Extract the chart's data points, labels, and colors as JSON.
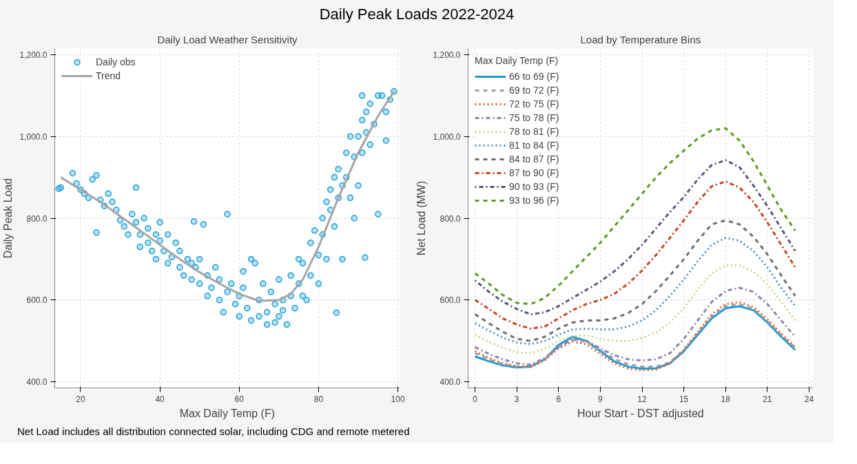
{
  "chart_data": [
    {
      "type": "scatter",
      "title": "Daily Load Weather Sensitivity",
      "xlabel": "Max Daily Temp (F)",
      "ylabel": "Daily Peak Load",
      "annotations": [
        "Daily Peak Loads 2022-2024"
      ],
      "xlim": [
        13.5,
        100.5
      ],
      "xticks": [
        20,
        40,
        60,
        80,
        100
      ],
      "ylim": [
        385,
        1215
      ],
      "yticks": [
        {
          "value": 400,
          "label": "400.0"
        },
        {
          "value": 600,
          "label": "600.0"
        },
        {
          "value": 800,
          "label": "800.0"
        },
        {
          "value": 1000,
          "label": "1,000.0"
        },
        {
          "value": 1200,
          "label": "1,200.0"
        }
      ],
      "grid": true,
      "legend": "top left",
      "series": [
        {
          "name": "Daily obs",
          "type": "scatter",
          "marker": "circle",
          "color": "#1a9fd9",
          "x": [
            14.5,
            15,
            18,
            19,
            20,
            21,
            22,
            23,
            24,
            24,
            25,
            26,
            27,
            28,
            29,
            30,
            31,
            32,
            33,
            34,
            34,
            35,
            35,
            36,
            37,
            37,
            38,
            39,
            39,
            40,
            40,
            41,
            42,
            42,
            43,
            44,
            45,
            45,
            46,
            47,
            48,
            48,
            48.6,
            49,
            50,
            50,
            51,
            52,
            52,
            53,
            54,
            55,
            55,
            56,
            57,
            57,
            58,
            59,
            60,
            60,
            61,
            61,
            62,
            63,
            63,
            64,
            65,
            65,
            66,
            67,
            67,
            68,
            69,
            69,
            70,
            70,
            71,
            71,
            72,
            73,
            73,
            74,
            75,
            75,
            76,
            76,
            77,
            78,
            78,
            79,
            80,
            80,
            81,
            81,
            82,
            82,
            83,
            83,
            84,
            84,
            84.5,
            85,
            85,
            86,
            86,
            87,
            87,
            88,
            88,
            89,
            89,
            90,
            90,
            91,
            91,
            91,
            91.7,
            92,
            92,
            93,
            93,
            94,
            95,
            95,
            96,
            97,
            97,
            98,
            99
          ],
          "values": [
            872,
            875,
            910,
            885,
            870,
            860,
            850,
            895,
            905,
            765,
            845,
            830,
            860,
            840,
            820,
            795,
            780,
            760,
            810,
            875,
            790,
            760,
            730,
            800,
            775,
            740,
            720,
            760,
            700,
            790,
            745,
            720,
            690,
            760,
            705,
            740,
            680,
            720,
            660,
            700,
            690,
            650,
            792,
            680,
            640,
            700,
            785,
            660,
            610,
            630,
            680,
            600,
            650,
            570,
            810,
            620,
            640,
            590,
            610,
            560,
            670,
            630,
            580,
            550,
            700,
            690,
            600,
            560,
            640,
            570,
            540,
            620,
            590,
            545,
            650,
            560,
            600,
            575,
            540,
            660,
            610,
            580,
            700,
            640,
            690,
            610,
            600,
            740,
            660,
            770,
            710,
            640,
            800,
            760,
            840,
            700,
            820,
            870,
            780,
            900,
            569,
            850,
            920,
            880,
            700,
            960,
            900,
            850,
            1000,
            950,
            800,
            1000,
            880,
            1040,
            960,
            1100,
            704,
            1010,
            1060,
            980,
            1080,
            1030,
            1100,
            810,
            1100,
            1060,
            990,
            1090,
            1110
          ]
        },
        {
          "name": "Trend",
          "type": "line",
          "marker": "none",
          "color": "#a6a6a6",
          "x": [
            15,
            20,
            25,
            30,
            35,
            40,
            45,
            50,
            55,
            60,
            65,
            70,
            73,
            76,
            80,
            85,
            90,
            95,
            99
          ],
          "values": [
            900,
            870,
            840,
            805,
            770,
            735,
            700,
            668,
            640,
            615,
            598,
            600,
            615,
            650,
            730,
            850,
            960,
            1050,
            1110
          ]
        }
      ]
    },
    {
      "type": "line",
      "title": "Load by Temperature Bins",
      "xlabel": "Hour Start - DST adjusted",
      "ylabel": "Net Load (MW)",
      "legend_title": "Max Daily Temp (F)",
      "annotations": [
        "Net Load includes all distribution connected solar, including CDG and remote metered"
      ],
      "xlim": [
        -0.5,
        24.3
      ],
      "xticks": [
        0,
        3,
        6,
        9,
        12,
        15,
        18,
        21,
        24
      ],
      "ylim": [
        385,
        1215
      ],
      "yticks": [
        {
          "value": 400,
          "label": "400.0"
        },
        {
          "value": 600,
          "label": "600.0"
        },
        {
          "value": 800,
          "label": "800.0"
        },
        {
          "value": 1000,
          "label": "1,000.0"
        },
        {
          "value": 1200,
          "label": "1,200.0"
        }
      ],
      "grid": true,
      "legend": "top left",
      "x": [
        0,
        1,
        2,
        3,
        4,
        5,
        6,
        7,
        8,
        9,
        10,
        11,
        12,
        13,
        14,
        15,
        16,
        17,
        18,
        19,
        20,
        21,
        22,
        23
      ],
      "series": [
        {
          "name": "66 to 69 (F)",
          "color": "#1f9ad6",
          "line_style": "solid",
          "values": [
            462,
            450,
            440,
            435,
            437,
            455,
            490,
            510,
            500,
            475,
            450,
            437,
            432,
            433,
            445,
            475,
            515,
            555,
            580,
            585,
            575,
            545,
            510,
            478
          ]
        },
        {
          "name": "69 to 72 (F)",
          "color": "#a0a0a0",
          "line_style": "dashed",
          "values": [
            470,
            455,
            443,
            437,
            438,
            455,
            485,
            503,
            498,
            478,
            456,
            443,
            437,
            437,
            448,
            478,
            520,
            560,
            585,
            590,
            578,
            548,
            515,
            483
          ]
        },
        {
          "name": "72 to 75 (F)",
          "color": "#e2602a",
          "line_style": "dotted",
          "values": [
            475,
            458,
            445,
            438,
            436,
            452,
            482,
            498,
            492,
            468,
            445,
            432,
            428,
            430,
            445,
            478,
            522,
            565,
            590,
            595,
            583,
            553,
            518,
            485
          ]
        },
        {
          "name": "75 to 78 (F)",
          "color": "#8a86b0",
          "line_style": "dashdot",
          "values": [
            485,
            468,
            455,
            445,
            442,
            458,
            485,
            505,
            500,
            482,
            465,
            455,
            452,
            455,
            470,
            505,
            550,
            595,
            622,
            630,
            620,
            590,
            550,
            510
          ]
        },
        {
          "name": "78 to 81 (F)",
          "color": "#bfd98a",
          "line_style": "dotted",
          "values": [
            515,
            498,
            483,
            472,
            470,
            480,
            500,
            512,
            513,
            505,
            500,
            500,
            507,
            520,
            545,
            580,
            625,
            665,
            685,
            685,
            670,
            638,
            595,
            550
          ]
        },
        {
          "name": "81 to 84 (F)",
          "color": "#4a90c2",
          "line_style": "dotted",
          "values": [
            543,
            525,
            508,
            496,
            492,
            500,
            515,
            528,
            530,
            528,
            528,
            535,
            550,
            575,
            610,
            650,
            695,
            735,
            752,
            745,
            720,
            680,
            630,
            585
          ]
        },
        {
          "name": "84 to 87 (F)",
          "color": "#6e6e6e",
          "line_style": "dashed",
          "values": [
            565,
            543,
            522,
            505,
            500,
            510,
            530,
            545,
            550,
            550,
            555,
            568,
            590,
            622,
            660,
            700,
            745,
            785,
            795,
            785,
            755,
            712,
            660,
            610
          ]
        },
        {
          "name": "87 to 90 (F)",
          "color": "#c8441c",
          "line_style": "dashdot",
          "values": [
            600,
            578,
            555,
            540,
            530,
            535,
            555,
            575,
            590,
            600,
            615,
            640,
            672,
            710,
            752,
            795,
            840,
            878,
            890,
            875,
            840,
            790,
            735,
            680
          ]
        },
        {
          "name": "90 to 93 (F)",
          "color": "#505a7a",
          "line_style": "dotdash",
          "values": [
            648,
            620,
            596,
            578,
            565,
            570,
            585,
            605,
            625,
            645,
            670,
            700,
            735,
            775,
            815,
            852,
            895,
            930,
            942,
            925,
            880,
            830,
            775,
            720
          ]
        },
        {
          "name": "93 to 96 (F)",
          "color": "#5a9a1e",
          "line_style": "dashed",
          "values": [
            665,
            640,
            612,
            593,
            590,
            605,
            635,
            670,
            705,
            740,
            780,
            820,
            860,
            900,
            935,
            965,
            995,
            1015,
            1020,
            990,
            940,
            880,
            820,
            770
          ]
        }
      ]
    }
  ]
}
